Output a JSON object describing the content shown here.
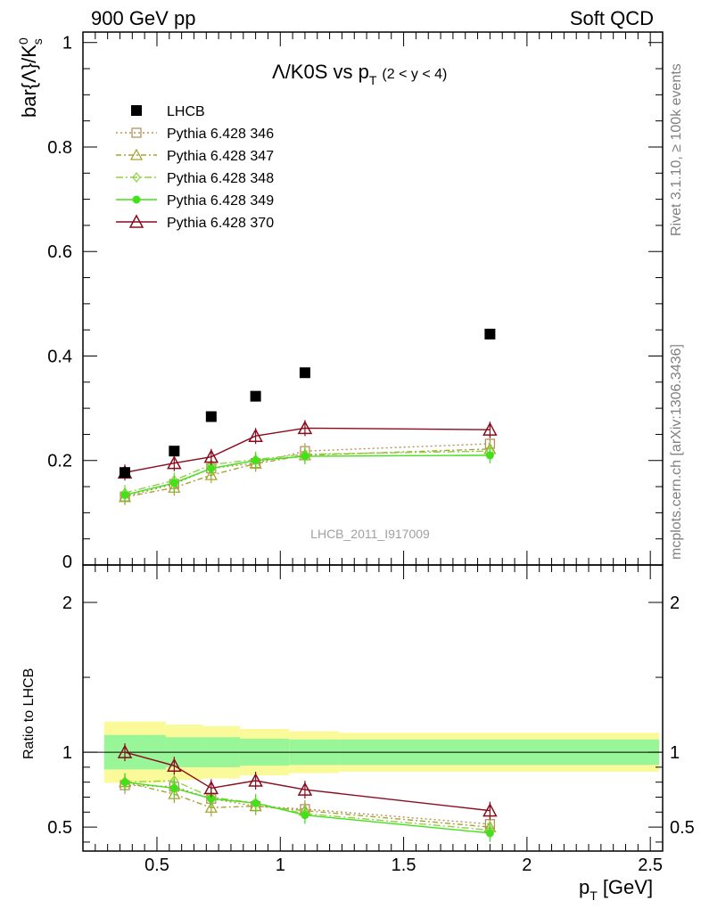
{
  "header": {
    "left": "900 GeV pp",
    "right": "Soft QCD"
  },
  "side_labels": {
    "rivet": "Rivet 3.1.10, ≥ 100k events",
    "mcplots": "mcplots.cern.ch [arXiv:1306.3436]"
  },
  "colors": {
    "LHCB": "#000000",
    "p346": "#b5915e",
    "p347": "#a2a630",
    "p348": "#8ed442",
    "p349": "#44e01a",
    "p370": "#8b0b1e",
    "band_inner": "#98f598",
    "band_outer": "#fafa9a"
  },
  "chart_data": {
    "type": "scatter",
    "title": "Λ̄/K0S vs p_T (2 < y < 4)",
    "title_main": "Λ/K0S vs p",
    "title_sub": "T",
    "title_range": "(2 < y < 4)",
    "watermark": "LHCB_2011_I917009",
    "xlabel": "p_T [GeV]",
    "xlabel_main": "p",
    "xlabel_sub": "T",
    "xlabel_unit": "[GeV]",
    "ylabel": "bar{Λ}/K⁰s",
    "ylabel_text": "bar{Λ}/K",
    "ylabel_sup": "0",
    "ylabel_sub": "s",
    "ratio_ylabel": "Ratio to LHCB",
    "xlim": [
      0.2,
      2.55
    ],
    "ylim": [
      0,
      1.02
    ],
    "ratio_ylim": [
      0.34,
      2.25
    ],
    "xticks": [
      "0.5",
      "1",
      "1.5",
      "2",
      "2.5"
    ],
    "xtick_values": [
      0.5,
      1,
      1.5,
      2,
      2.5
    ],
    "yticks": [
      "0.2",
      "0.4",
      "0.6",
      "0.8",
      "1"
    ],
    "ytick_values": [
      0.2,
      0.4,
      0.6,
      0.8,
      1
    ],
    "ratio_yticks": [
      "0.5",
      "1",
      "2"
    ],
    "ratio_ytick_values": [
      0.5,
      1,
      2
    ],
    "legend_position": "top-left",
    "x": [
      0.37,
      0.57,
      0.72,
      0.9,
      1.1,
      1.85
    ],
    "bin_edges": [
      0.25,
      0.5,
      0.65,
      0.8,
      1.0,
      1.2,
      2.5
    ],
    "data": {
      "name": "LHCB",
      "values": [
        0.177,
        0.218,
        0.284,
        0.323,
        0.368,
        0.442
      ]
    },
    "band_inner": [
      0.115,
      0.1,
      0.1,
      0.09,
      0.085,
      0.085
    ],
    "band_outer": [
      0.205,
      0.185,
      0.175,
      0.155,
      0.14,
      0.13
    ],
    "series": [
      {
        "key": "p346",
        "name": "Pythia 6.428 346",
        "marker": "square",
        "values": [
          0.131,
          0.155,
          0.185,
          0.195,
          0.218,
          0.232
        ],
        "ratio": [
          0.78,
          0.77,
          0.69,
          0.64,
          0.62,
          0.52
        ]
      },
      {
        "key": "p347",
        "name": "Pythia 6.428 347",
        "marker": "triangle",
        "values": [
          0.13,
          0.148,
          0.172,
          0.194,
          0.21,
          0.222
        ],
        "ratio": [
          0.8,
          0.72,
          0.63,
          0.64,
          0.61,
          0.5
        ]
      },
      {
        "key": "p348",
        "name": "Pythia 6.428 348",
        "marker": "diamond",
        "values": [
          0.138,
          0.162,
          0.192,
          0.202,
          0.212,
          0.218
        ],
        "ratio": [
          0.8,
          0.81,
          0.7,
          0.66,
          0.59,
          0.48
        ]
      },
      {
        "key": "p349",
        "name": "Pythia 6.428 349",
        "marker": "circle",
        "values": [
          0.134,
          0.157,
          0.185,
          0.2,
          0.208,
          0.21
        ],
        "ratio": [
          0.8,
          0.76,
          0.69,
          0.66,
          0.58,
          0.46
        ]
      },
      {
        "key": "p370",
        "name": "Pythia 6.428 370",
        "marker": "triangle-open-large",
        "values": [
          0.177,
          0.195,
          0.207,
          0.247,
          0.262,
          0.259
        ],
        "ratio": [
          1.0,
          0.91,
          0.76,
          0.81,
          0.75,
          0.61
        ]
      }
    ]
  }
}
